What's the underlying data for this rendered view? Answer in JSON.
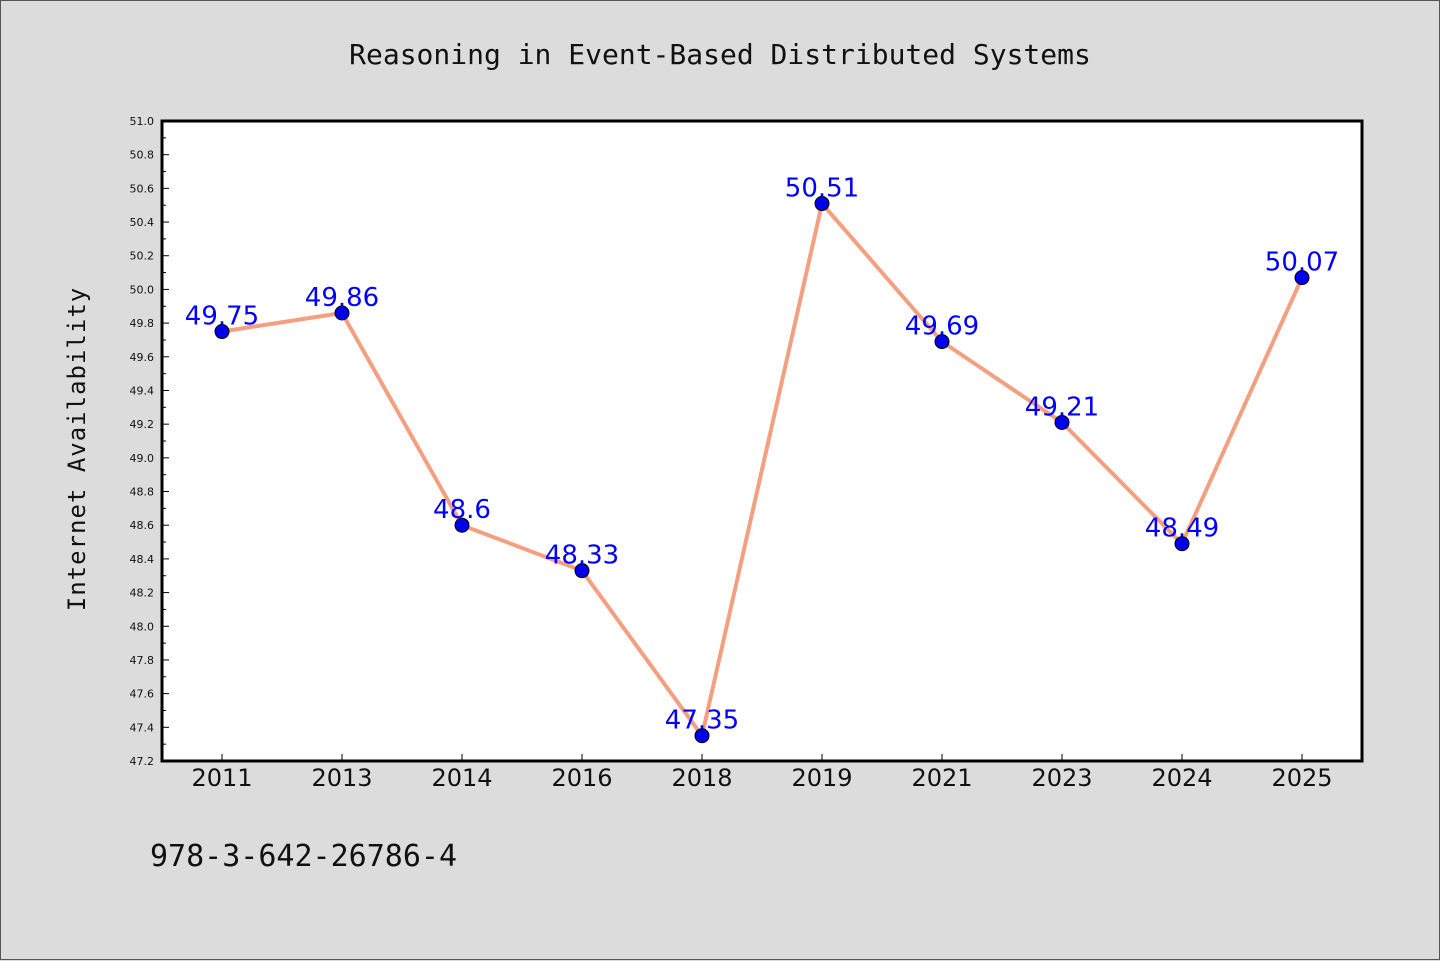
{
  "chart_data": {
    "type": "line",
    "title": "Reasoning in Event-Based Distributed Systems",
    "xlabel": "",
    "ylabel": "Internet Availability",
    "categories": [
      "2011",
      "2013",
      "2014",
      "2016",
      "2018",
      "2019",
      "2021",
      "2023",
      "2024",
      "2025"
    ],
    "values": [
      49.75,
      49.86,
      48.6,
      48.33,
      47.35,
      50.51,
      49.69,
      49.21,
      48.49,
      50.07
    ],
    "data_labels": [
      "49.75",
      "49.86",
      "48.6",
      "48.33",
      "47.35",
      "50.51",
      "49.69",
      "49.21",
      "48.49",
      "50.07"
    ],
    "ylim": [
      47.2,
      51.0
    ],
    "yticks": [
      "47.2",
      "47.4",
      "47.6",
      "47.8",
      "48.0",
      "48.2",
      "48.4",
      "48.6",
      "48.8",
      "49.0",
      "49.2",
      "49.4",
      "49.6",
      "49.8",
      "50.0",
      "50.2",
      "50.4",
      "50.6",
      "50.8",
      "51.0"
    ],
    "grid": false,
    "line_color": "#f4a080",
    "marker_color": "#0000ee",
    "label_color": "#0000ff"
  },
  "footer": {
    "isbn": "978-3-642-26786-4"
  }
}
